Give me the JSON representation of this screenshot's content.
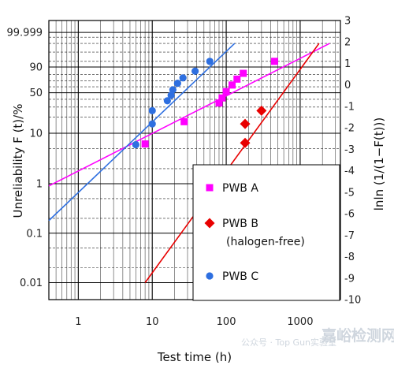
{
  "chart_data": {
    "type": "scatter",
    "xlabel": "Test time (h)",
    "ylabel": "Unreliability F (t)/%",
    "y2label": "lnln (1/(1−F(t)))",
    "xscale": "log",
    "xlim": [
      0.4,
      3500
    ],
    "y2lim": [
      -10,
      3
    ],
    "x_ticks": [
      {
        "value": 1,
        "label": "1"
      },
      {
        "value": 10,
        "label": "10"
      },
      {
        "value": 100,
        "label": "100"
      },
      {
        "value": 1000,
        "label": "1000"
      }
    ],
    "y_ticks": [
      {
        "value": 99.999,
        "label": "99.999"
      },
      {
        "value": 90,
        "label": "90"
      },
      {
        "value": 50,
        "label": "50"
      },
      {
        "value": 10,
        "label": "10"
      },
      {
        "value": 1,
        "label": "1"
      },
      {
        "value": 0.1,
        "label": "0.1"
      },
      {
        "value": 0.01,
        "label": "0.01"
      }
    ],
    "y2_ticks": [
      3,
      2,
      1,
      0,
      -1,
      -2,
      -3,
      -4,
      -5,
      -6,
      -7,
      -8,
      -9,
      -10
    ],
    "grid": true,
    "legend_position": "bottom-right",
    "series": [
      {
        "name": "PWB A",
        "marker": "square",
        "color": "#ff00ff",
        "points": [
          [
            8,
            6.2
          ],
          [
            27,
            16.5
          ],
          [
            80,
            35
          ],
          [
            88,
            42
          ],
          [
            100,
            52
          ],
          [
            120,
            63
          ],
          [
            140,
            73
          ],
          [
            170,
            82
          ],
          [
            450,
            95
          ]
        ],
        "fit": {
          "from": [
            0.4,
            0.9
          ],
          "to": [
            2500,
            99.9
          ]
        }
      },
      {
        "name": "PWB B",
        "name_line2": "(halogen-free)",
        "marker": "diamond",
        "color": "#e80000",
        "points": [
          [
            180,
            6.5
          ],
          [
            180,
            15
          ],
          [
            300,
            26
          ]
        ],
        "fit": {
          "from": [
            8,
            0.01
          ],
          "to": [
            1800,
            99.9
          ]
        }
      },
      {
        "name": "PWB C",
        "marker": "circle",
        "color": "#2e6fe0",
        "points": [
          [
            6,
            6
          ],
          [
            10,
            15
          ],
          [
            10,
            26
          ],
          [
            16,
            38
          ],
          [
            18,
            46
          ],
          [
            19,
            55
          ],
          [
            22,
            66
          ],
          [
            26,
            75
          ],
          [
            38,
            85
          ],
          [
            60,
            95
          ]
        ],
        "fit": {
          "from": [
            0.4,
            0.18
          ],
          "to": [
            130,
            99.9
          ]
        }
      }
    ]
  },
  "watermark": {
    "source": "公众号 · Top Gun实验室",
    "brand": "嘉峪检测网"
  }
}
